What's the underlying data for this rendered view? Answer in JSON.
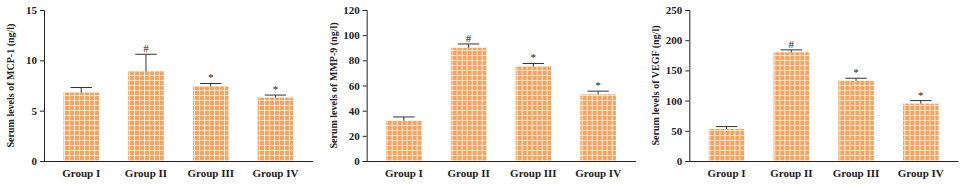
{
  "chart_data": [
    {
      "type": "bar",
      "y_label": "Serum levels of MCP-1 (ng/l)",
      "categories": [
        "Group I",
        "Group II",
        "Group III",
        "Group IV"
      ],
      "values": [
        6.8,
        8.9,
        7.4,
        6.3
      ],
      "errors": [
        0.5,
        1.7,
        0.3,
        0.25
      ],
      "annotations": [
        null,
        "#",
        "*",
        "*"
      ],
      "color": "#f4a460",
      "ylim": [
        0,
        15
      ],
      "yticks": [
        0,
        5,
        10,
        15
      ],
      "grid": false
    },
    {
      "type": "bar",
      "y_label": "Serum levels of MMP-9 (ng/l)",
      "categories": [
        "Group I",
        "Group II",
        "Group III",
        "Group IV"
      ],
      "values": [
        32,
        90,
        75,
        53
      ],
      "errors": [
        3,
        3,
        2.5,
        2.5
      ],
      "annotations": [
        null,
        "#",
        "*",
        "*"
      ],
      "color": "#f4a460",
      "ylim": [
        0,
        120
      ],
      "yticks": [
        0,
        20,
        40,
        60,
        80,
        100,
        120
      ],
      "grid": false
    },
    {
      "type": "bar",
      "y_label": "Serum levels of VEGF (ng/l)",
      "categories": [
        "Group I",
        "Group II",
        "Group III",
        "Group IV"
      ],
      "values": [
        53,
        180,
        133,
        95
      ],
      "errors": [
        4,
        4,
        4,
        5
      ],
      "annotations": [
        null,
        "#",
        "*",
        "*"
      ],
      "color": "#f4a460",
      "ylim": [
        0,
        250
      ],
      "yticks": [
        0,
        50,
        100,
        150,
        200,
        250
      ],
      "grid": false
    }
  ]
}
